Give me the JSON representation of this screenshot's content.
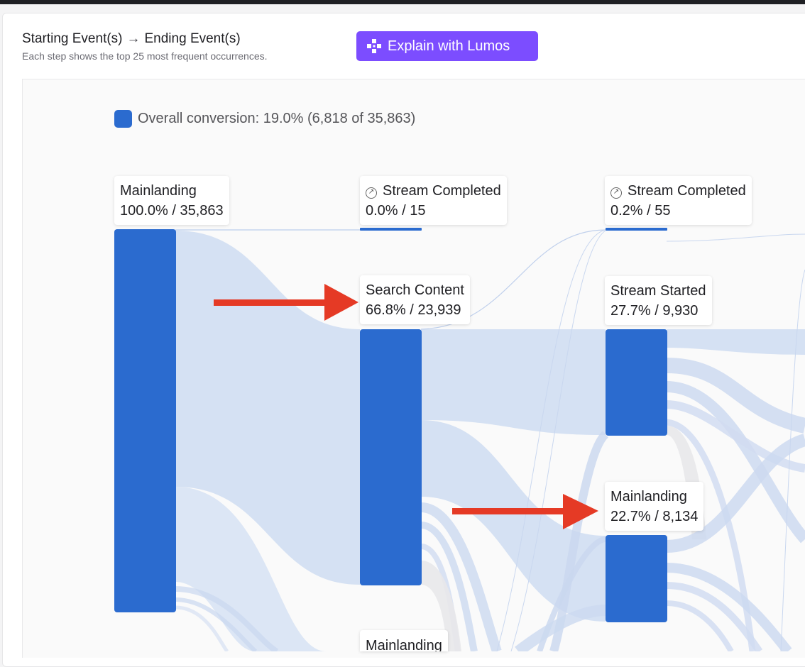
{
  "header": {
    "start_label": "Starting Event(s)",
    "end_label": "Ending Event(s)",
    "subtitle": "Each step shows the top 25 most frequent occurrences.",
    "explain_button": "Explain with Lumos"
  },
  "legend": {
    "text": "Overall conversion: 19.0% (6,818 of 35,863)",
    "color": "#2b6bcf"
  },
  "colors": {
    "node": "#2b6bcf",
    "flow": "#d3dff2",
    "arrow": "#e53a25",
    "button": "#7c4dff"
  },
  "nodes": [
    {
      "id": "n1",
      "name": "Mainlanding",
      "stat": "100.0% / 35,863",
      "icon": null
    },
    {
      "id": "n2",
      "name": "Stream Completed",
      "stat": "0.0% / 15",
      "icon": "exit-icon"
    },
    {
      "id": "n3",
      "name": "Search Content",
      "stat": "66.8% / 23,939",
      "icon": null
    },
    {
      "id": "n4",
      "name": "Stream Completed",
      "stat": "0.2% / 55",
      "icon": "exit-icon"
    },
    {
      "id": "n5",
      "name": "Stream Started",
      "stat": "27.7% / 9,930",
      "icon": null
    },
    {
      "id": "n6",
      "name": "Mainlanding",
      "stat": "22.7% / 8,134",
      "icon": null
    },
    {
      "id": "n7",
      "name": "Mainlanding",
      "stat": "",
      "icon": null
    }
  ]
}
